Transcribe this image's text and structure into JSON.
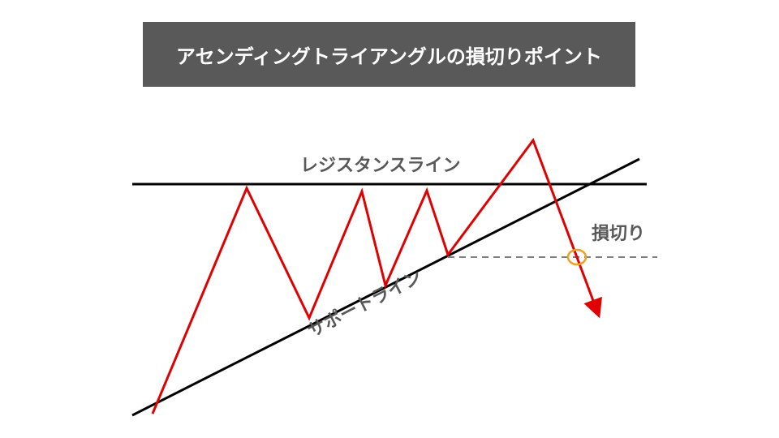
{
  "title": "アセンディングトライアングルの損切りポイント",
  "labels": {
    "resistance": "レジスタンスライン",
    "support": "サポートライン",
    "stop_loss": "損切り"
  },
  "colors": {
    "title_bg": "#595959",
    "price_line": "#e00000",
    "trend_lines": "#000000",
    "dashed_line": "#7f7f7f",
    "stop_marker": "#f0a020",
    "label_text": "#595959"
  }
}
